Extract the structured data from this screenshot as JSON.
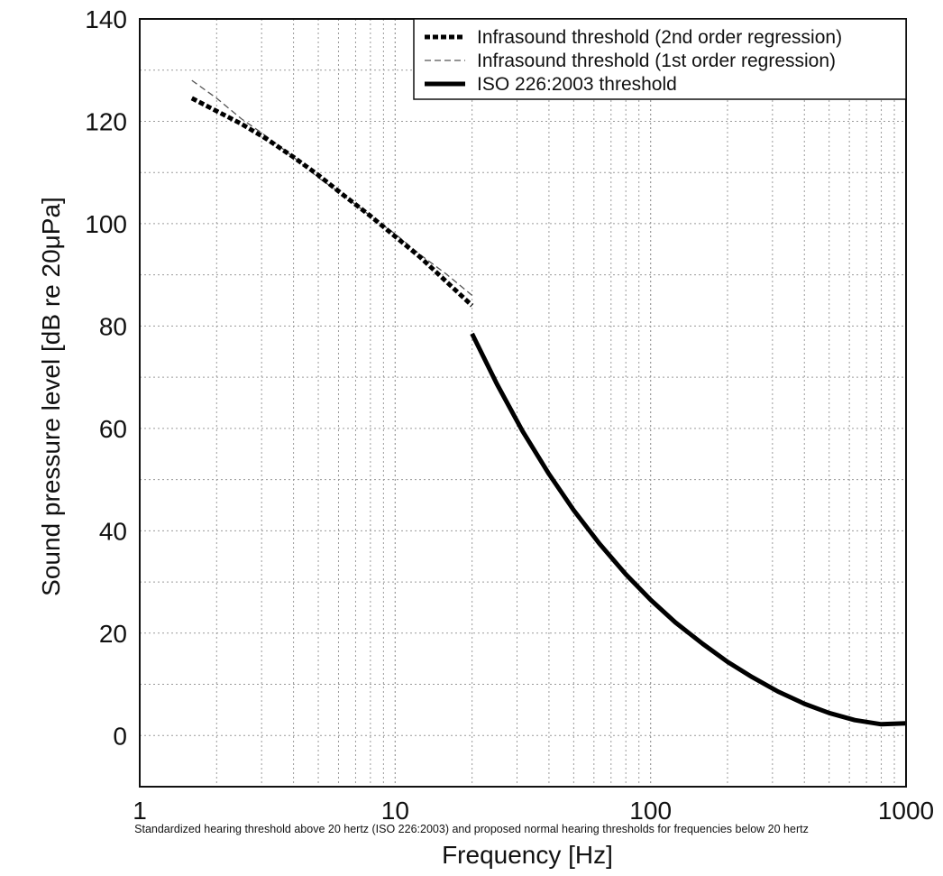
{
  "caption": "Standardized hearing threshold above 20 hertz (ISO 226:2003) and proposed normal hearing thresholds for frequencies below 20 hertz",
  "chart_data": {
    "type": "line",
    "title": "",
    "xlabel": "Frequency [Hz]",
    "ylabel": "Sound pressure level [dB re 20μPa]",
    "xscale": "log",
    "xlim": [
      1,
      1000
    ],
    "ylim": [
      -10,
      140
    ],
    "x_ticks": [
      1,
      10,
      100,
      1000
    ],
    "x_tick_labels": [
      "1",
      "10",
      "100",
      "1000"
    ],
    "y_ticks": [
      0,
      20,
      40,
      60,
      80,
      100,
      120,
      140
    ],
    "y_tick_labels": [
      "0",
      "20",
      "40",
      "60",
      "80",
      "100",
      "120",
      "140"
    ],
    "grid": true,
    "legend_position": "top-right",
    "series": [
      {
        "name": "Infrasound threshold (2nd order regression)",
        "style": "dashed-thick",
        "color": "#000000",
        "x": [
          1.6,
          2,
          2.5,
          3.15,
          4,
          5,
          6.3,
          8,
          10,
          12.5,
          16,
          20
        ],
        "y": [
          124.5,
          122,
          119.5,
          116.5,
          113,
          109.5,
          105.5,
          101.5,
          97.5,
          93.5,
          88.5,
          84
        ]
      },
      {
        "name": "Infrasound threshold (1st order regression)",
        "style": "dashed-thin",
        "color": "#555555",
        "x": [
          1.6,
          2,
          2.5,
          3.15,
          4,
          5,
          6.3,
          8,
          10,
          12.5,
          16,
          20
        ],
        "y": [
          128,
          124.5,
          120.5,
          117,
          113,
          109,
          105.5,
          101.5,
          98,
          94,
          90,
          86
        ]
      },
      {
        "name": "ISO 226:2003 threshold",
        "style": "solid",
        "color": "#000000",
        "x": [
          20,
          25,
          31.5,
          40,
          50,
          63,
          80,
          100,
          125,
          160,
          200,
          250,
          315,
          400,
          500,
          630,
          800,
          1000
        ],
        "y": [
          78.5,
          68.7,
          59.5,
          51.1,
          44,
          37.5,
          31.5,
          26.5,
          22.1,
          17.9,
          14.4,
          11.4,
          8.6,
          6.2,
          4.4,
          3,
          2.2,
          2.4
        ]
      }
    ]
  }
}
